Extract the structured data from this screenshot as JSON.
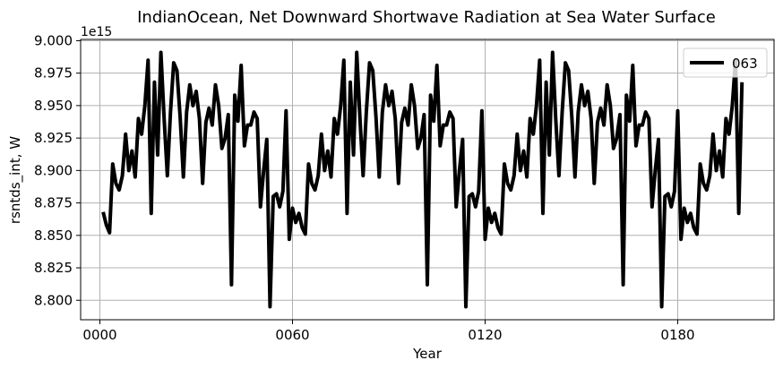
{
  "chart_data": {
    "type": "line",
    "title": "IndianOcean, Net Downward Shortwave Radiation at Sea Water Surface",
    "xlabel": "Year",
    "ylabel": "rsntds_int, W",
    "y_offset_label": "1e15",
    "y_scale": 1000000000000000.0,
    "xlim": [
      -6,
      210
    ],
    "ylim": [
      8.785,
      9.001
    ],
    "x_ticks": [
      0,
      60,
      120,
      180
    ],
    "x_tick_labels": [
      "0000",
      "0060",
      "0120",
      "0180"
    ],
    "y_ticks": [
      8.8,
      8.825,
      8.85,
      8.875,
      8.9,
      8.925,
      8.95,
      8.975,
      9.0
    ],
    "y_tick_labels": [
      "8.800",
      "8.825",
      "8.850",
      "8.875",
      "8.900",
      "8.925",
      "8.950",
      "8.975",
      "9.000"
    ],
    "grid": true,
    "legend_position": "top-right",
    "series": [
      {
        "name": "063",
        "color": "#000000",
        "x": [
          1,
          2,
          3,
          4,
          5,
          6,
          7,
          8,
          9,
          10,
          11,
          12,
          13,
          14,
          15,
          16,
          17,
          18,
          19,
          20,
          21,
          22,
          23,
          24,
          25,
          26,
          27,
          28,
          29,
          30,
          31,
          32,
          33,
          34,
          35,
          36,
          37,
          38,
          39,
          40,
          41,
          42,
          43,
          44,
          45,
          46,
          47,
          48,
          49,
          50,
          51,
          52,
          53,
          54,
          55,
          56,
          57,
          58,
          59,
          60,
          61,
          62,
          63,
          64,
          65,
          66,
          67,
          68,
          69,
          70,
          71,
          72,
          73,
          74,
          75,
          76,
          77,
          78,
          79,
          80,
          81,
          82,
          83,
          84,
          85,
          86,
          87,
          88,
          89,
          90,
          91,
          92,
          93,
          94,
          95,
          96,
          97,
          98,
          99,
          100,
          101,
          102,
          103,
          104,
          105,
          106,
          107,
          108,
          109,
          110,
          111,
          112,
          113,
          114,
          115,
          116,
          117,
          118,
          119,
          120,
          121,
          122,
          123,
          124,
          125,
          126,
          127,
          128,
          129,
          130,
          131,
          132,
          133,
          134,
          135,
          136,
          137,
          138,
          139,
          140,
          141,
          142,
          143,
          144,
          145,
          146,
          147,
          148,
          149,
          150,
          151,
          152,
          153,
          154,
          155,
          156,
          157,
          158,
          159,
          160,
          161,
          162,
          163,
          164,
          165,
          166,
          167,
          168,
          169,
          170,
          171,
          172,
          173,
          174,
          175,
          176,
          177,
          178,
          179,
          180,
          181,
          182,
          183,
          184,
          185,
          186,
          187,
          188,
          189,
          190,
          191,
          192,
          193,
          194,
          195,
          196,
          197,
          198,
          199,
          200
        ],
        "y": [
          8.868,
          8.858,
          8.852,
          8.905,
          8.89,
          8.885,
          8.896,
          8.928,
          8.9,
          8.915,
          8.895,
          8.94,
          8.928,
          8.95,
          8.985,
          8.867,
          8.968,
          8.912,
          8.991,
          8.94,
          8.896,
          8.945,
          8.983,
          8.977,
          8.941,
          8.895,
          8.945,
          8.966,
          8.95,
          8.961,
          8.94,
          8.89,
          8.937,
          8.948,
          8.935,
          8.966,
          8.95,
          8.917,
          8.925,
          8.943,
          8.812,
          8.958,
          8.938,
          8.981,
          8.919,
          8.935,
          8.935,
          8.945,
          8.94,
          8.872,
          8.9,
          8.924,
          8.795,
          8.88,
          8.882,
          8.872,
          8.884,
          8.946,
          8.847,
          8.871,
          8.86,
          8.867,
          8.856,
          8.851,
          8.905,
          8.89,
          8.885,
          8.896,
          8.928,
          8.9,
          8.915,
          8.895,
          8.94,
          8.928,
          8.95,
          8.985,
          8.867,
          8.968,
          8.912,
          8.991,
          8.94,
          8.896,
          8.945,
          8.983,
          8.977,
          8.941,
          8.895,
          8.945,
          8.966,
          8.95,
          8.961,
          8.94,
          8.89,
          8.937,
          8.948,
          8.935,
          8.966,
          8.95,
          8.917,
          8.925,
          8.943,
          8.812,
          8.958,
          8.938,
          8.981,
          8.919,
          8.935,
          8.935,
          8.945,
          8.94,
          8.872,
          8.9,
          8.924,
          8.795,
          8.88,
          8.882,
          8.872,
          8.884,
          8.946,
          8.847,
          8.871,
          8.86,
          8.867,
          8.856,
          8.851,
          8.905,
          8.89,
          8.885,
          8.896,
          8.928,
          8.9,
          8.915,
          8.895,
          8.94,
          8.928,
          8.95,
          8.985,
          8.867,
          8.968,
          8.912,
          8.991,
          8.94,
          8.896,
          8.945,
          8.983,
          8.977,
          8.941,
          8.895,
          8.945,
          8.966,
          8.95,
          8.961,
          8.94,
          8.89,
          8.937,
          8.948,
          8.935,
          8.966,
          8.95,
          8.917,
          8.925,
          8.943,
          8.812,
          8.958,
          8.938,
          8.981,
          8.919,
          8.935,
          8.935,
          8.945,
          8.94,
          8.872,
          8.9,
          8.924,
          8.795,
          8.88,
          8.882,
          8.872,
          8.884,
          8.946,
          8.847,
          8.871,
          8.86,
          8.867,
          8.856,
          8.851,
          8.905,
          8.89,
          8.885,
          8.896,
          8.928,
          8.9,
          8.915,
          8.895,
          8.94,
          8.928,
          8.95,
          8.985,
          8.867,
          8.968
        ]
      }
    ]
  }
}
